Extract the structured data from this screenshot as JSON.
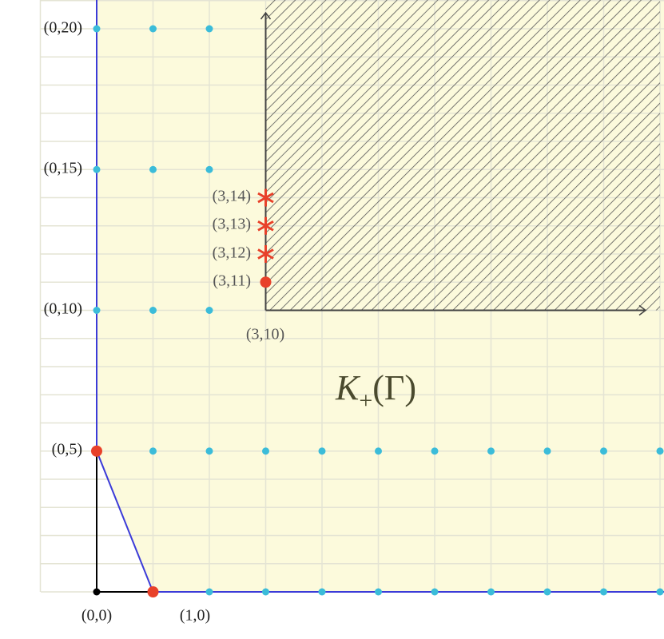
{
  "axis_labels": {
    "y20": "(0,20)",
    "y15": "(0,15)",
    "y10": "(0,10)",
    "y5": "(0,5)",
    "origin": "(0,0)",
    "x1": "(1,0)"
  },
  "corner_label": "(3,10)",
  "point_labels": [
    "(3,14)",
    "(3,13)",
    "(3,12)",
    "(3,11)"
  ],
  "region_label": {
    "symbol": "K",
    "subscript": "+",
    "argument": "(Γ)"
  }
}
